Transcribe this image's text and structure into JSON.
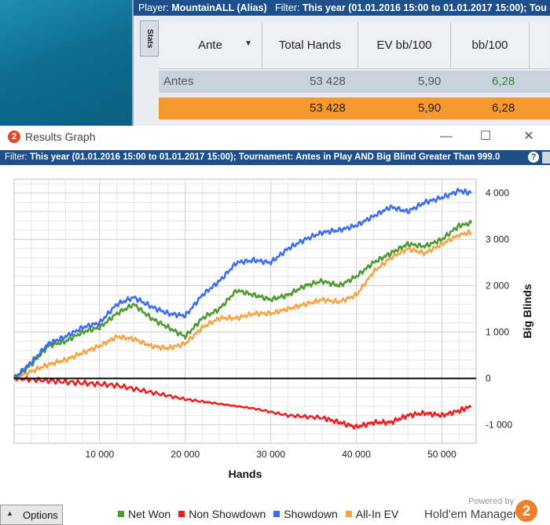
{
  "stats_window": {
    "header_player_label": "Player:",
    "header_player": "MountainALL (Alias)",
    "header_filter_label": "Filter:",
    "header_filter": "This year (01.01.2016 15:00 to 01.01.2017 15:00); Tou",
    "side_tab": "Stats",
    "columns": [
      "Ante",
      "Total Hands",
      "EV bb/100",
      "bb/100"
    ],
    "row_antes": {
      "label": "Antes",
      "hands": "53 428",
      "ev": "5,90",
      "bb": "6,28"
    },
    "row_total": {
      "hands": "53 428",
      "ev": "5,90",
      "bb": "6,28"
    }
  },
  "results_window": {
    "title": "Results Graph",
    "filter_label": "Filter:",
    "filter_text": "This year (01.01.2016 15:00 to 01.01.2017 15:00); Tournament: Antes in Play  AND Big Blind Greater Than 999.0",
    "x_axis_label": "Hands",
    "y_axis_label": "Big Blinds",
    "options_label": "Options",
    "powered_by": "Powered by",
    "brand": "Hold'em Manager",
    "brand_logo": "2"
  },
  "colors": {
    "net_won": "#4e9a2f",
    "non_showdown": "#ee1c1c",
    "showdown": "#3a6ef2",
    "all_in_ev": "#f7a447",
    "header_blue": "#1d4f8a",
    "highlight_orange": "#f7982f"
  },
  "chart_data": {
    "type": "line",
    "x_ticks": [
      "10 000",
      "20 000",
      "30 000",
      "40 000",
      "50 000"
    ],
    "y_ticks": [
      "4 000",
      "3 000",
      "2 000",
      "1 000",
      "0",
      "-1 000"
    ],
    "xlabel": "Hands",
    "ylabel": "Big Blinds",
    "xlim": [
      0,
      54000
    ],
    "ylim": [
      -1400,
      4300
    ],
    "grid": true,
    "legend_position": "bottom",
    "series": [
      {
        "name": "Net Won",
        "color": "#4e9a2f",
        "x": [
          0,
          2000,
          4000,
          6000,
          8000,
          10000,
          12000,
          14000,
          16000,
          18000,
          20000,
          22000,
          24000,
          26000,
          28000,
          30000,
          32000,
          34000,
          36000,
          38000,
          40000,
          42000,
          44000,
          46000,
          48000,
          50000,
          52000,
          53428
        ],
        "y": [
          0,
          300,
          700,
          800,
          1000,
          1100,
          1400,
          1600,
          1300,
          1100,
          900,
          1300,
          1500,
          1900,
          1800,
          1700,
          1800,
          2000,
          2100,
          2000,
          2200,
          2500,
          2700,
          2900,
          2850,
          3000,
          3300,
          3350
        ]
      },
      {
        "name": "Non Showdown",
        "color": "#ee1c1c",
        "x": [
          0,
          4000,
          8000,
          12000,
          16000,
          20000,
          24000,
          28000,
          32000,
          36000,
          38000,
          40000,
          42000,
          44000,
          46000,
          48000,
          50000,
          52000,
          53428
        ],
        "y": [
          0,
          -50,
          -100,
          -150,
          -300,
          -450,
          -550,
          -650,
          -800,
          -850,
          -950,
          -1050,
          -950,
          -950,
          -800,
          -750,
          -800,
          -700,
          -600
        ]
      },
      {
        "name": "Showdown",
        "color": "#3a6ef2",
        "x": [
          0,
          2000,
          4000,
          6000,
          8000,
          10000,
          12000,
          14000,
          16000,
          18000,
          20000,
          22000,
          24000,
          26000,
          28000,
          30000,
          32000,
          34000,
          36000,
          38000,
          40000,
          42000,
          44000,
          46000,
          48000,
          50000,
          52000,
          53428
        ],
        "y": [
          0,
          350,
          750,
          900,
          1100,
          1200,
          1600,
          1750,
          1550,
          1400,
          1350,
          1800,
          2100,
          2500,
          2550,
          2500,
          2800,
          3000,
          3150,
          3200,
          3300,
          3500,
          3700,
          3600,
          3800,
          3900,
          4050,
          4000
        ]
      },
      {
        "name": "All-In EV",
        "color": "#f7a447",
        "x": [
          0,
          2000,
          4000,
          6000,
          8000,
          10000,
          12000,
          14000,
          16000,
          18000,
          20000,
          22000,
          24000,
          26000,
          28000,
          30000,
          32000,
          34000,
          36000,
          38000,
          40000,
          42000,
          44000,
          46000,
          48000,
          50000,
          52000,
          53428
        ],
        "y": [
          0,
          150,
          300,
          400,
          550,
          700,
          900,
          850,
          700,
          650,
          750,
          1100,
          1300,
          1300,
          1400,
          1400,
          1500,
          1600,
          1700,
          1650,
          1800,
          2300,
          2600,
          2800,
          2700,
          2900,
          3100,
          3150
        ]
      }
    ]
  }
}
